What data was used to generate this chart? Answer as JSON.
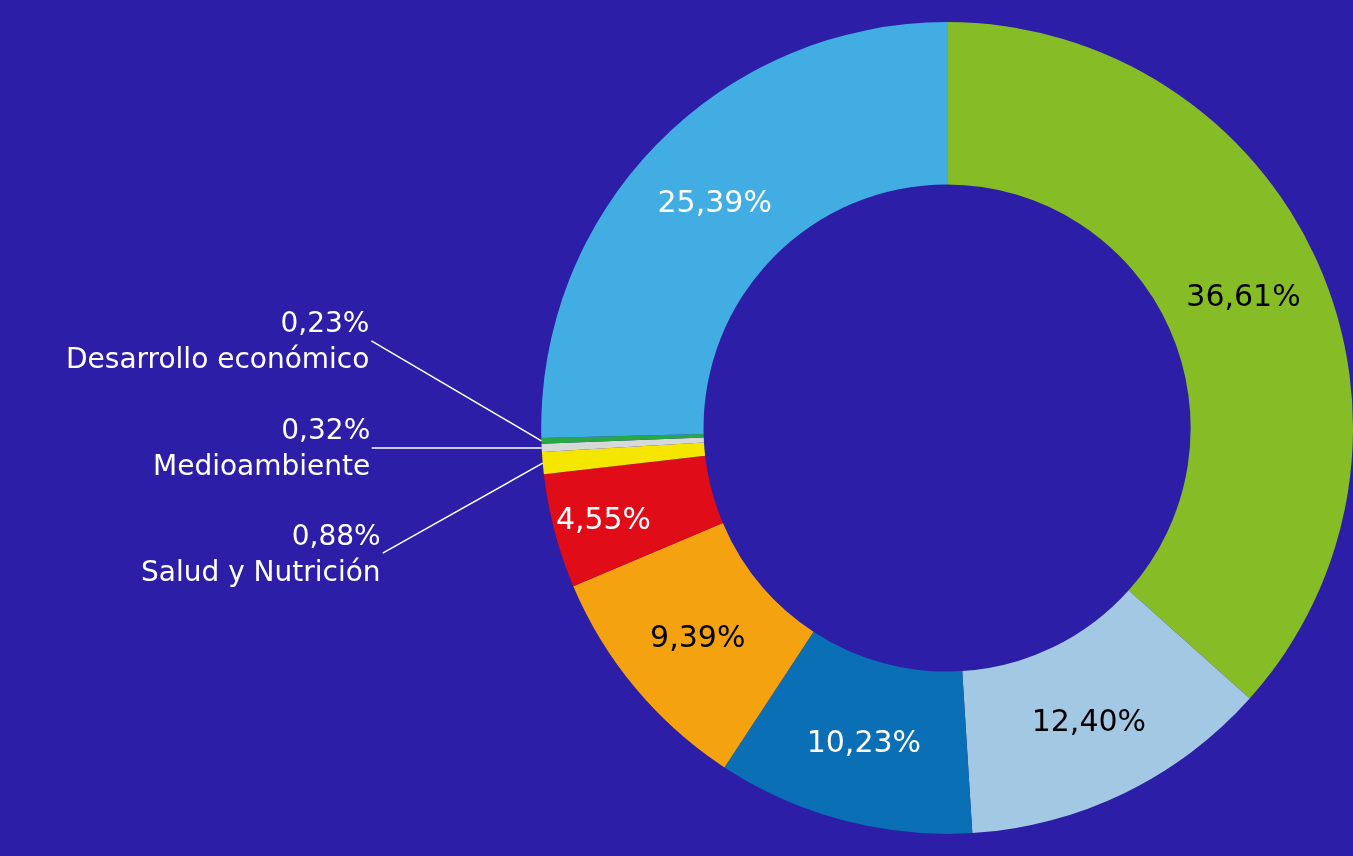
{
  "chart_data": {
    "type": "donut",
    "categories": [
      null,
      null,
      null,
      null,
      null,
      "Salud y Nutrición",
      "Medioambiente",
      "Desarrollo económico",
      null
    ],
    "values": [
      36.61,
      12.4,
      10.23,
      9.39,
      4.55,
      0.88,
      0.32,
      0.23,
      25.39
    ],
    "value_labels": [
      "36,61%",
      "12,40%",
      "10,23%",
      "9,39%",
      "4,55%",
      "0,88%",
      "0,32%",
      "0,23%",
      "25,39%"
    ],
    "colors": [
      "#86bc25",
      "#a2c8e4",
      "#0a6fb4",
      "#f4a20f",
      "#e00c18",
      "#f5e600",
      "#d8d8d8",
      "#27a844",
      "#42ade2"
    ],
    "legend": false
  }
}
